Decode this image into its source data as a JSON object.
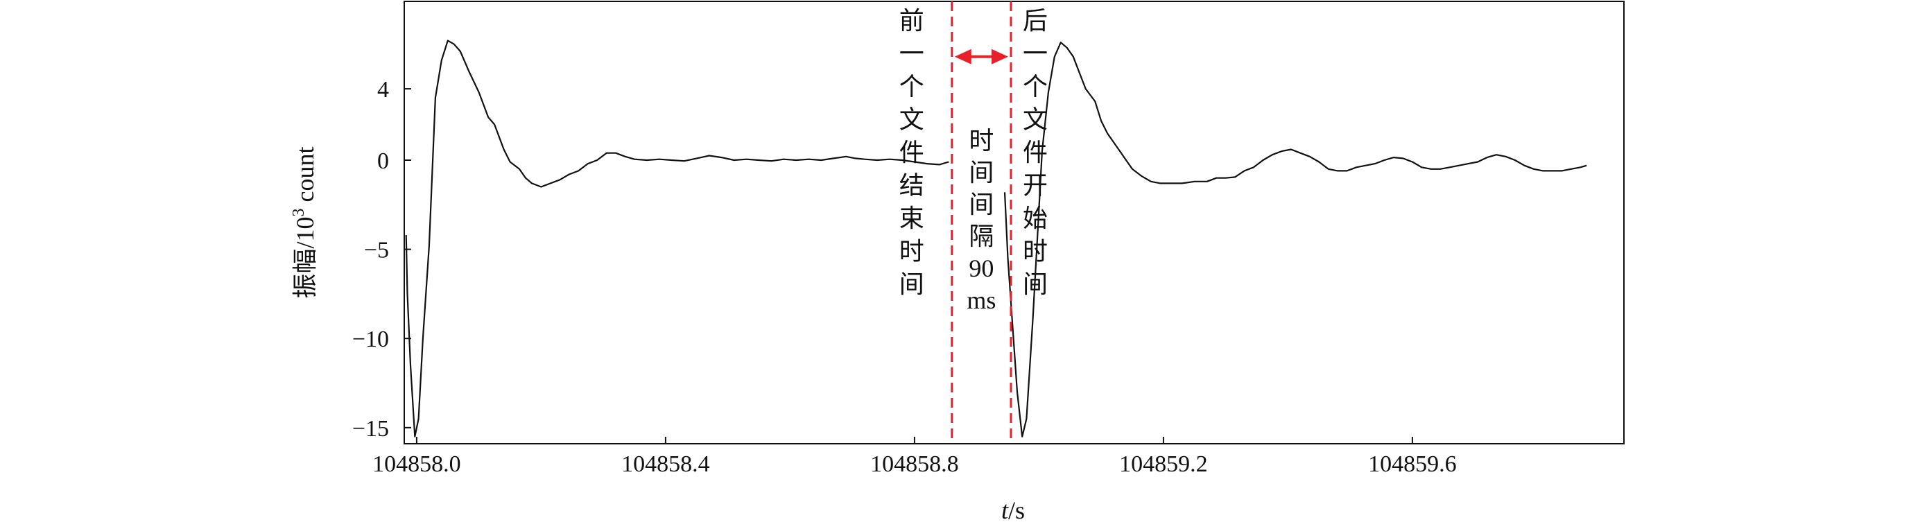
{
  "chart_data": {
    "type": "line",
    "title": "",
    "xlabel_italic": "t",
    "xlabel_rest": "/s",
    "ylabel_main": "振幅/10",
    "ylabel_sup": "3",
    "ylabel_tail": " count",
    "xlim": [
      104857.98,
      104859.94
    ],
    "ylim": [
      -15.9,
      8.9
    ],
    "xticks": [
      104858.0,
      104858.4,
      104858.8,
      104859.2,
      104859.6
    ],
    "xtick_labels": [
      "104858.0",
      "104858.4",
      "104858.8",
      "104859.2",
      "104859.6"
    ],
    "yticks": [
      4,
      0,
      -5,
      -10,
      -15
    ],
    "ytick_labels": [
      "4",
      "0",
      "−5",
      "−10",
      "−15"
    ],
    "series": [
      {
        "segments": [
          [
            [
              104857.983,
              -4.2
            ],
            [
              104857.985,
              -7.5
            ],
            [
              104857.99,
              -11.5
            ],
            [
              104857.997,
              -15.5
            ],
            [
              104858.003,
              -14.5
            ],
            [
              104858.01,
              -10.0
            ],
            [
              104858.02,
              -4.8
            ],
            [
              104858.03,
              3.5
            ],
            [
              104858.04,
              5.6
            ],
            [
              104858.05,
              6.7
            ],
            [
              104858.06,
              6.5
            ],
            [
              104858.07,
              6.1
            ],
            [
              104858.085,
              4.9
            ],
            [
              104858.1,
              3.8
            ],
            [
              104858.115,
              2.4
            ],
            [
              104858.125,
              2.0
            ],
            [
              104858.14,
              0.6
            ],
            [
              104858.15,
              -0.1
            ],
            [
              104858.165,
              -0.5
            ],
            [
              104858.175,
              -1.0
            ],
            [
              104858.185,
              -1.3
            ],
            [
              104858.2,
              -1.5
            ],
            [
              104858.215,
              -1.3
            ],
            [
              104858.23,
              -1.1
            ],
            [
              104858.245,
              -0.8
            ],
            [
              104858.26,
              -0.6
            ],
            [
              104858.275,
              -0.2
            ],
            [
              104858.29,
              0.0
            ],
            [
              104858.305,
              0.4
            ],
            [
              104858.32,
              0.4
            ],
            [
              104858.335,
              0.2
            ],
            [
              104858.35,
              0.05
            ],
            [
              104858.37,
              0.0
            ],
            [
              104858.39,
              0.05
            ],
            [
              104858.41,
              0.0
            ],
            [
              104858.43,
              -0.05
            ],
            [
              104858.45,
              0.1
            ],
            [
              104858.47,
              0.25
            ],
            [
              104858.49,
              0.15
            ],
            [
              104858.51,
              0.0
            ],
            [
              104858.53,
              0.05
            ],
            [
              104858.55,
              0.0
            ],
            [
              104858.57,
              -0.05
            ],
            [
              104858.59,
              0.05
            ],
            [
              104858.61,
              0.0
            ],
            [
              104858.63,
              0.05
            ],
            [
              104858.65,
              0.0
            ],
            [
              104858.67,
              0.1
            ],
            [
              104858.69,
              0.2
            ],
            [
              104858.705,
              0.1
            ],
            [
              104858.72,
              0.05
            ],
            [
              104858.74,
              0.0
            ],
            [
              104858.76,
              0.05
            ],
            [
              104858.78,
              0.0
            ],
            [
              104858.8,
              -0.1
            ],
            [
              104858.82,
              -0.2
            ],
            [
              104858.84,
              -0.25
            ],
            [
              104858.855,
              -0.1
            ]
          ],
          [
            [
              104858.945,
              -1.8
            ],
            [
              104858.95,
              -5.5
            ],
            [
              104858.958,
              -9.5
            ],
            [
              104858.965,
              -13.0
            ],
            [
              104858.973,
              -15.5
            ],
            [
              104858.98,
              -14.5
            ],
            [
              104858.99,
              -9.0
            ],
            [
              104858.998,
              -4.0
            ],
            [
              104859.005,
              0.5
            ],
            [
              104859.015,
              3.8
            ],
            [
              104859.025,
              5.8
            ],
            [
              104859.035,
              6.6
            ],
            [
              104859.045,
              6.3
            ],
            [
              104859.055,
              5.8
            ],
            [
              104859.065,
              4.9
            ],
            [
              104859.075,
              4.0
            ],
            [
              104859.09,
              3.3
            ],
            [
              104859.1,
              2.2
            ],
            [
              104859.11,
              1.5
            ],
            [
              104859.12,
              1.0
            ],
            [
              104859.13,
              0.5
            ],
            [
              104859.14,
              0.0
            ],
            [
              104859.15,
              -0.5
            ],
            [
              104859.165,
              -0.9
            ],
            [
              104859.18,
              -1.2
            ],
            [
              104859.195,
              -1.3
            ],
            [
              104859.21,
              -1.3
            ],
            [
              104859.23,
              -1.3
            ],
            [
              104859.25,
              -1.2
            ],
            [
              104859.27,
              -1.2
            ],
            [
              104859.285,
              -1.0
            ],
            [
              104859.3,
              -1.0
            ],
            [
              104859.315,
              -0.95
            ],
            [
              104859.33,
              -0.6
            ],
            [
              104859.345,
              -0.4
            ],
            [
              104859.36,
              0.0
            ],
            [
              104859.375,
              0.3
            ],
            [
              104859.39,
              0.5
            ],
            [
              104859.405,
              0.6
            ],
            [
              104859.42,
              0.4
            ],
            [
              104859.435,
              0.2
            ],
            [
              104859.45,
              -0.1
            ],
            [
              104859.465,
              -0.5
            ],
            [
              104859.48,
              -0.6
            ],
            [
              104859.495,
              -0.6
            ],
            [
              104859.51,
              -0.4
            ],
            [
              104859.525,
              -0.3
            ],
            [
              104859.54,
              -0.2
            ],
            [
              104859.555,
              0.0
            ],
            [
              104859.57,
              0.15
            ],
            [
              104859.585,
              0.1
            ],
            [
              104859.6,
              -0.1
            ],
            [
              104859.615,
              -0.4
            ],
            [
              104859.63,
              -0.5
            ],
            [
              104859.645,
              -0.5
            ],
            [
              104859.66,
              -0.4
            ],
            [
              104859.675,
              -0.3
            ],
            [
              104859.69,
              -0.2
            ],
            [
              104859.705,
              -0.1
            ],
            [
              104859.72,
              0.15
            ],
            [
              104859.735,
              0.3
            ],
            [
              104859.75,
              0.2
            ],
            [
              104859.765,
              0.0
            ],
            [
              104859.78,
              -0.3
            ],
            [
              104859.795,
              -0.5
            ],
            [
              104859.81,
              -0.6
            ],
            [
              104859.825,
              -0.6
            ],
            [
              104859.84,
              -0.6
            ],
            [
              104859.855,
              -0.5
            ],
            [
              104859.87,
              -0.4
            ],
            [
              104859.88,
              -0.3
            ]
          ]
        ]
      }
    ],
    "markers": {
      "color": "#e8202a",
      "lines": [
        104858.86,
        104858.955
      ],
      "arrow_y": 5.8
    },
    "annotations": {
      "left_vertical_chars": [
        "前",
        "一",
        "个",
        "文",
        "件",
        "结",
        "束",
        "时",
        "间"
      ],
      "middle_vertical_chars": [
        "时",
        "间",
        "间",
        "隔",
        "90",
        "ms"
      ],
      "right_vertical_chars": [
        "后",
        "一",
        "个",
        "文",
        "件",
        "开",
        "始",
        "时",
        "间"
      ]
    },
    "grid": false,
    "legend": "none"
  }
}
